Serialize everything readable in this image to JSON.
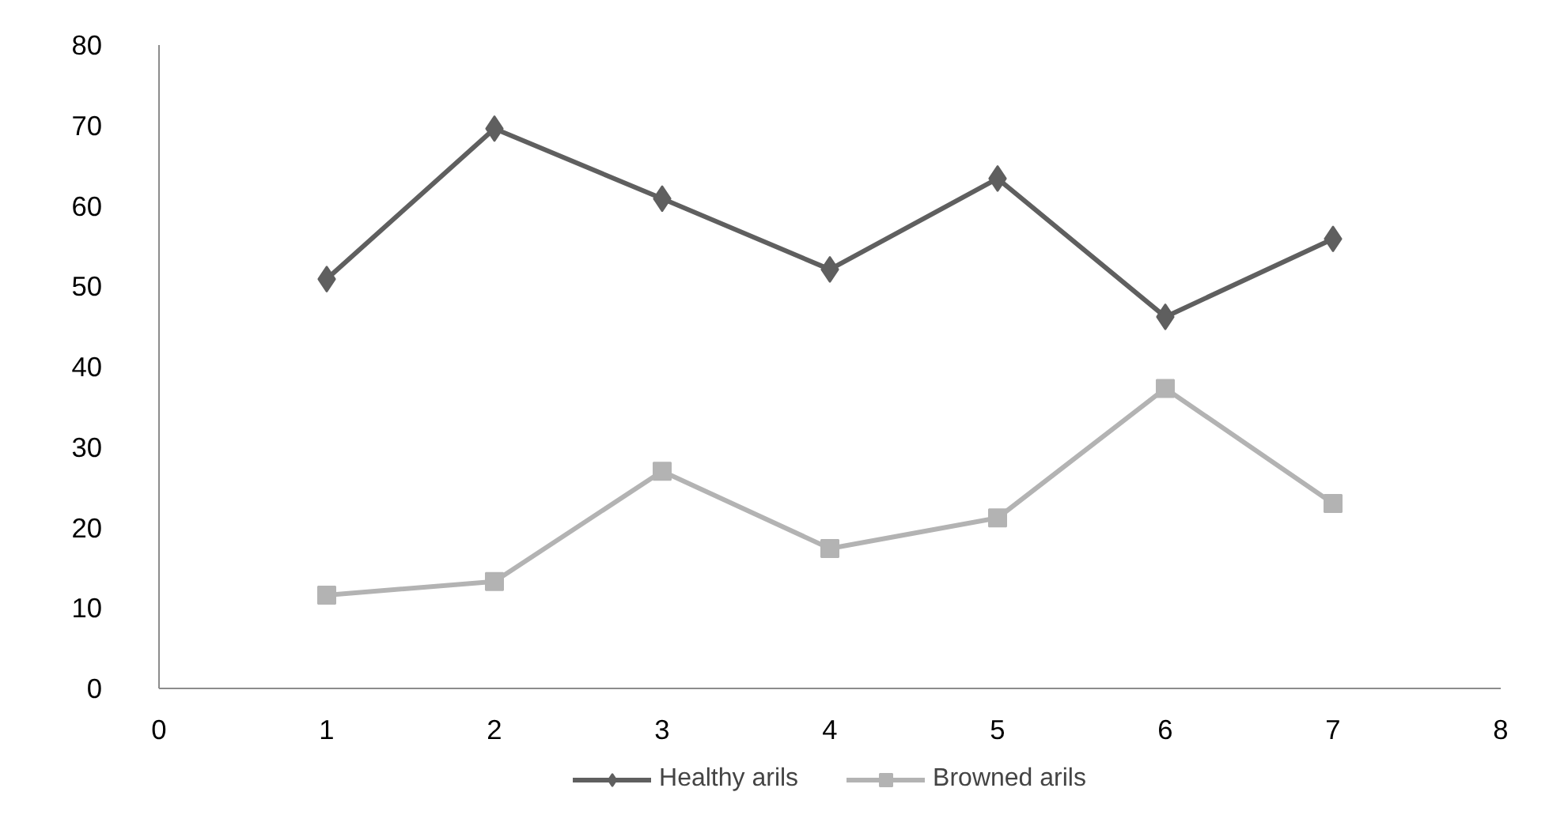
{
  "chart_data": {
    "type": "line",
    "x": [
      1,
      2,
      3,
      4,
      5,
      6,
      7
    ],
    "series": [
      {
        "name": "Healthy arils",
        "color": "#5f5f5f",
        "marker": "diamond",
        "values": [
          50.9,
          69.6,
          60.9,
          52.1,
          63.4,
          46.2,
          55.9
        ]
      },
      {
        "name": "Browned arils",
        "color": "#b3b3b3",
        "marker": "square",
        "values": [
          11.6,
          13.3,
          27.0,
          17.4,
          21.2,
          37.3,
          23.0
        ]
      }
    ],
    "xlim": [
      0,
      8
    ],
    "xticks": [
      0,
      1,
      2,
      3,
      4,
      5,
      6,
      7,
      8
    ],
    "ylim": [
      0,
      80
    ],
    "yticks": [
      0,
      10,
      20,
      30,
      40,
      50,
      60,
      70,
      80
    ],
    "grid": false,
    "legend": "bottom",
    "line_style": "solid"
  }
}
